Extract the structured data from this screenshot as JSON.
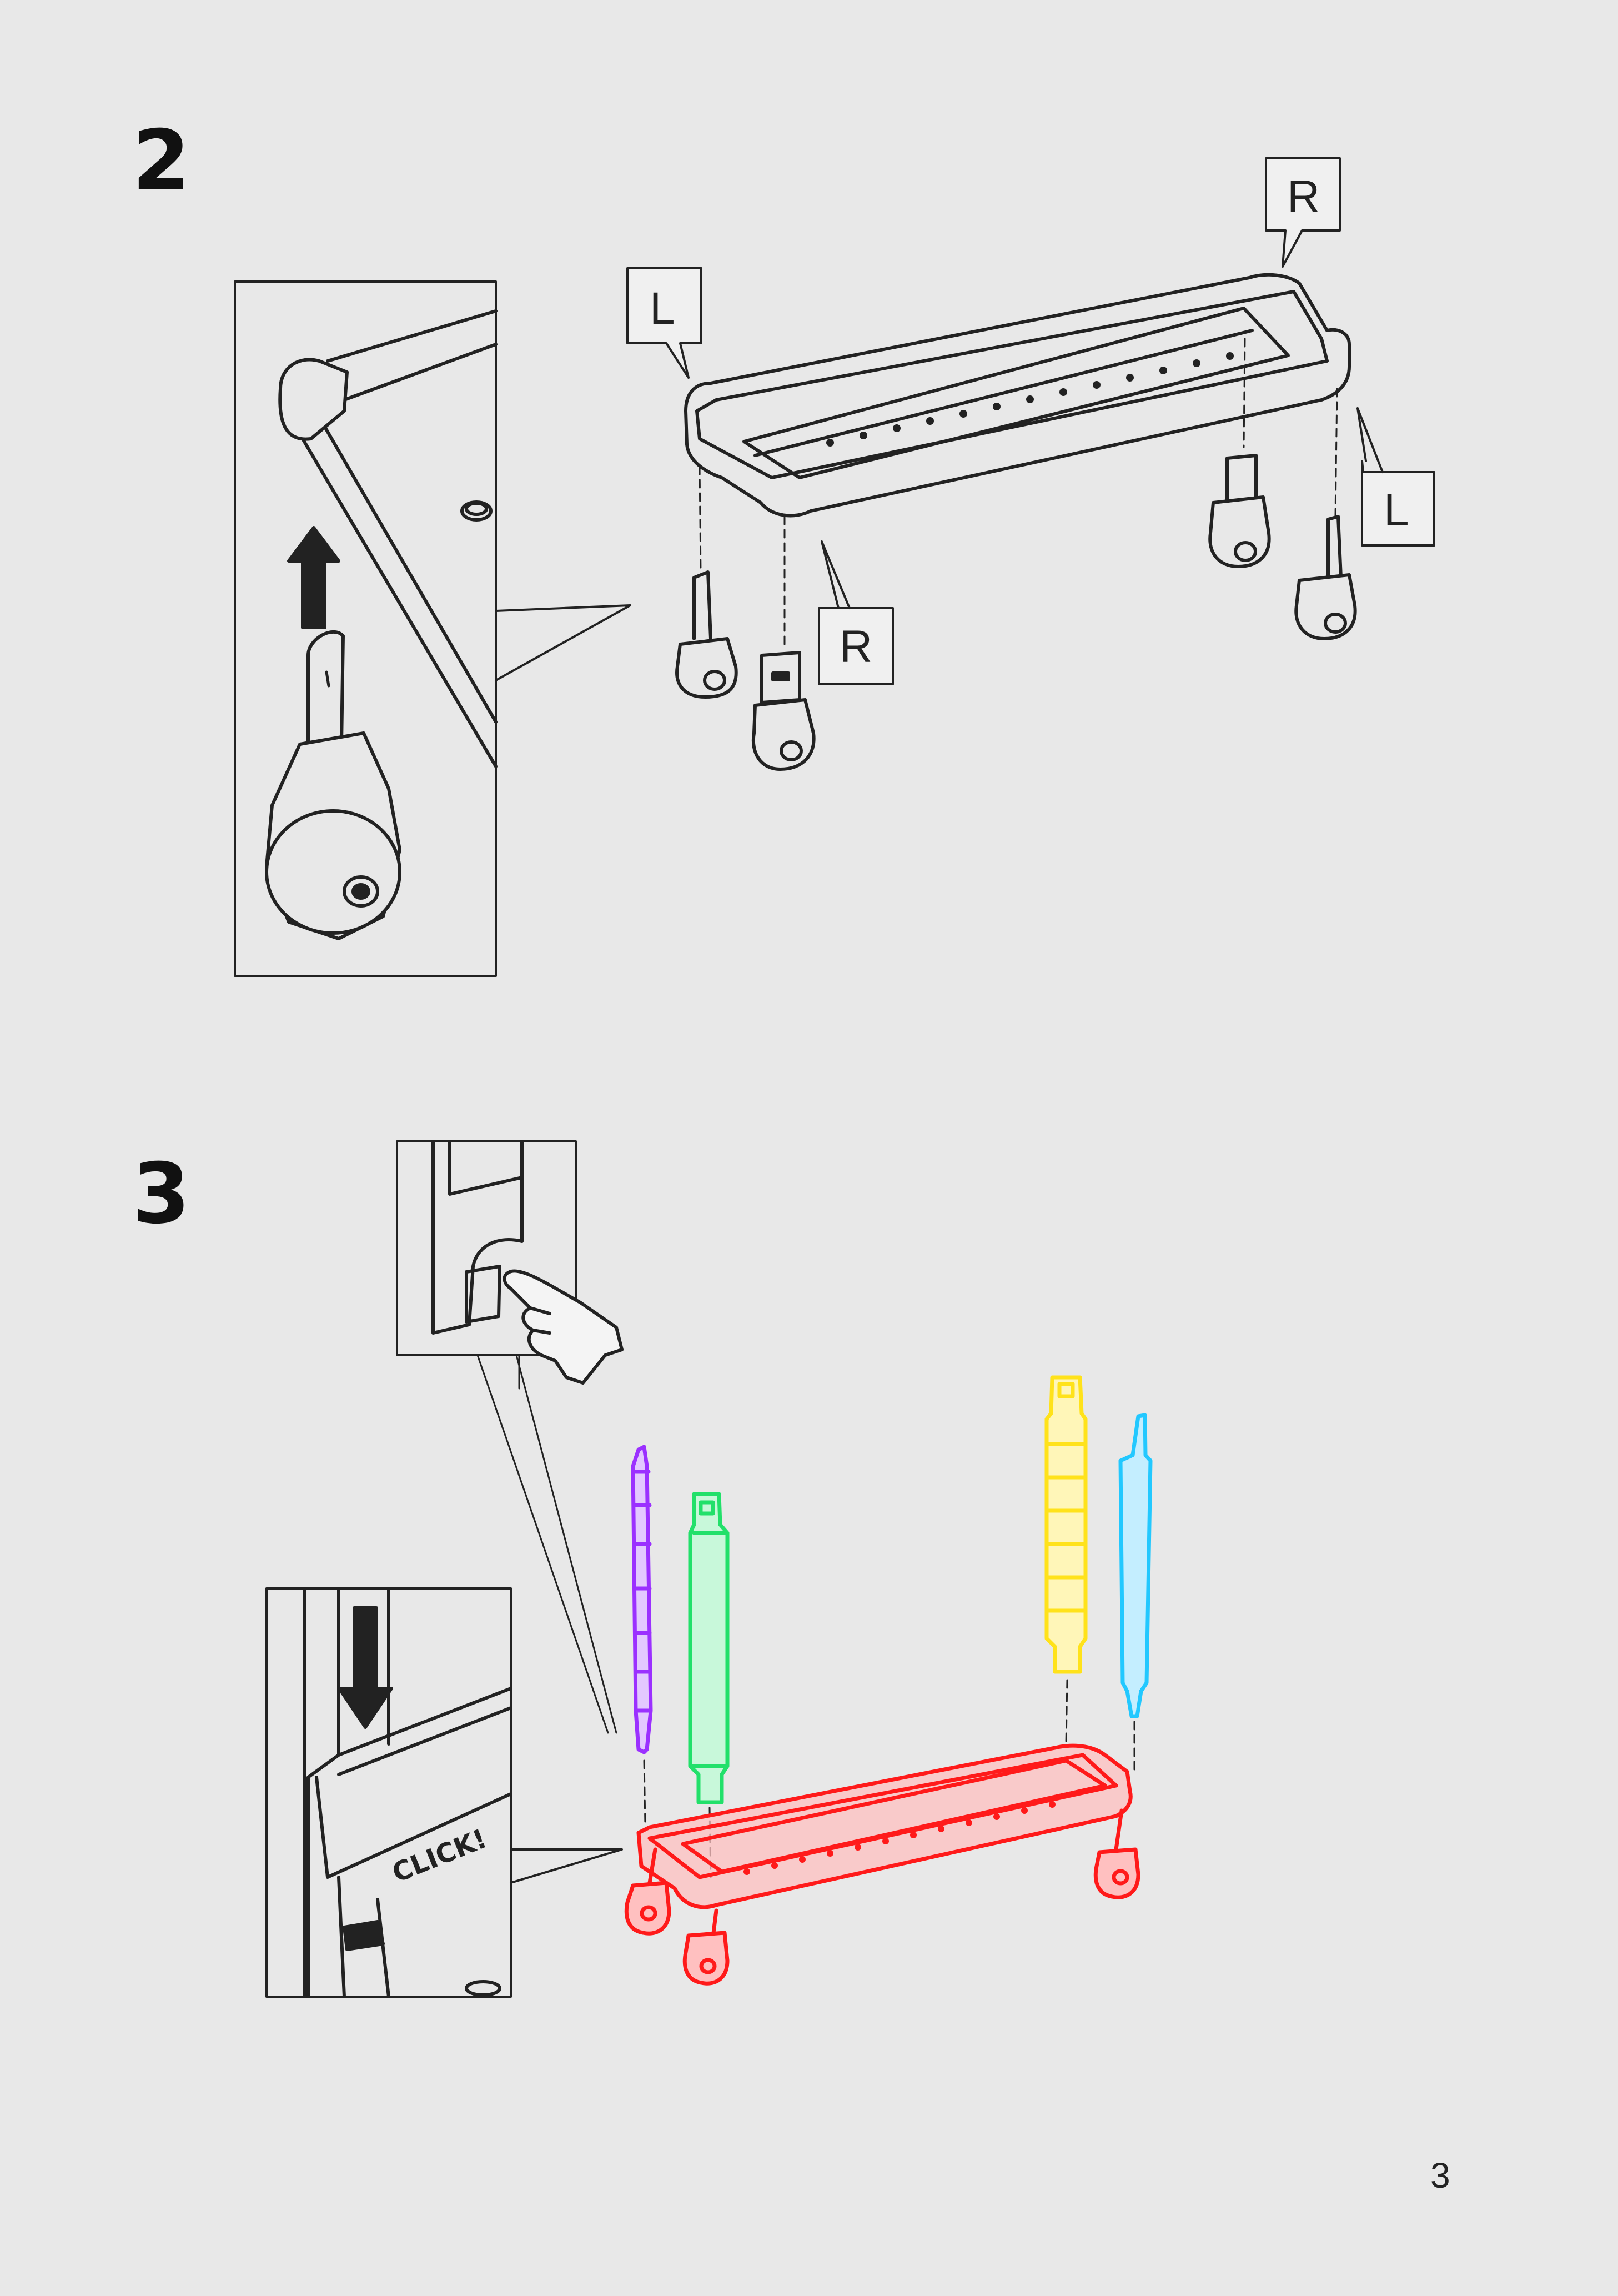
{
  "steps": [
    {
      "number": "2"
    },
    {
      "number": "3"
    }
  ],
  "labels": {
    "L": "L",
    "R": "R"
  },
  "click_text": "CLICK!",
  "page_number": "3",
  "colors": {
    "purple": "#9b30ff",
    "green": "#22e06a",
    "yellow": "#ffe21a",
    "cyan": "#22c8ff",
    "red": "#ff1a1a"
  }
}
